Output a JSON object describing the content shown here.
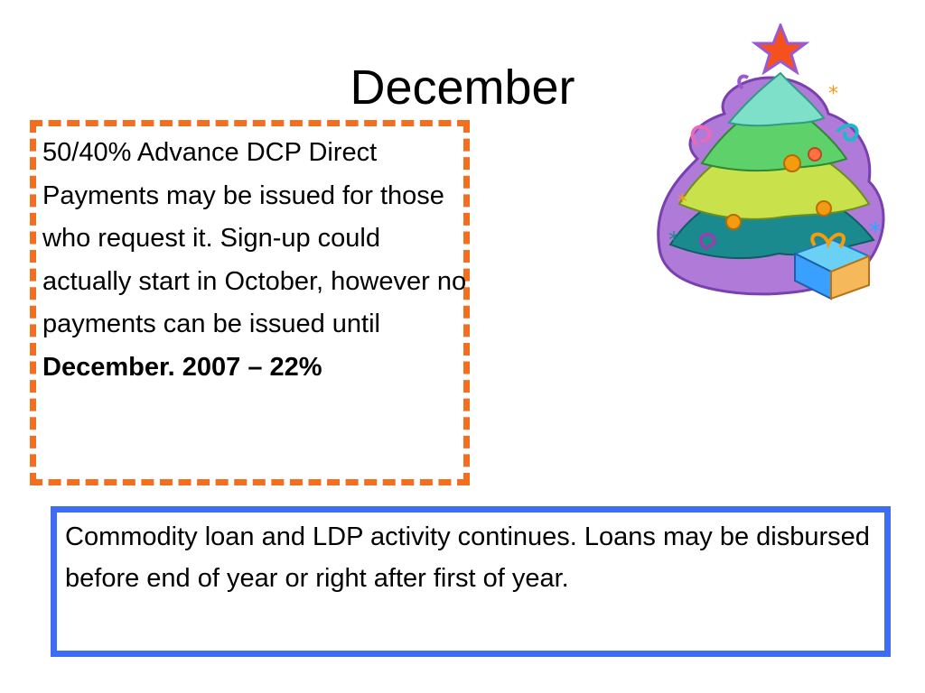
{
  "slide": {
    "title": "December",
    "left_box": {
      "text": "50/40% Advance DCP Direct Payments may be issued for those who request it.  Sign-up could actually start in October, however no payments can be issued until",
      "bold_text": "December. 2007 – 22%",
      "border_color": "#f36f1f"
    },
    "right_box": {
      "text": "Commodity loan and LDP activity continues. Loans may be disbursed before end of year or right after first of year.",
      "border_color": "#3d6cf5"
    },
    "clipart": {
      "icon": "christmas-tree-icon",
      "colors": [
        "#9b59d0",
        "#6fd3b3",
        "#d4e157",
        "#f39c12",
        "#e91e63",
        "#3aa0ff"
      ]
    }
  }
}
